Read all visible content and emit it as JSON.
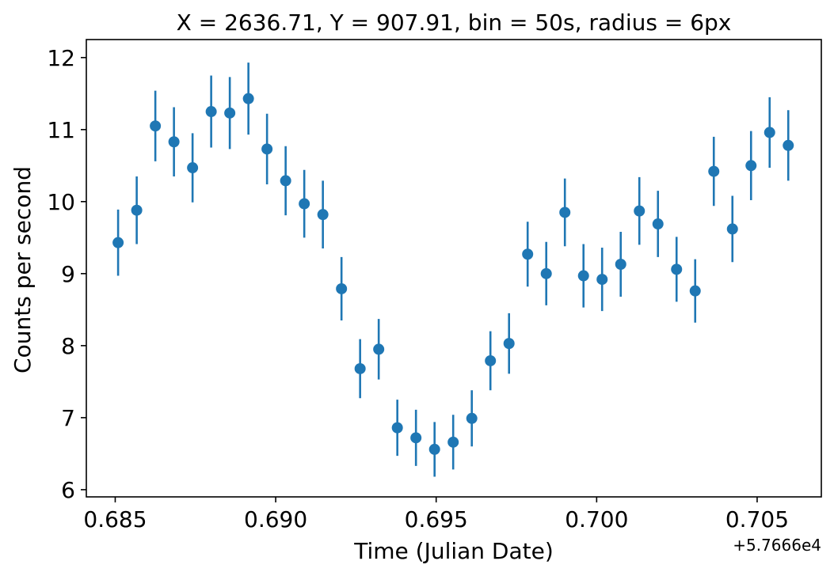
{
  "chart_data": {
    "type": "scatter",
    "title": "X = 2636.71, Y = 907.91, bin = 50s, radius = 6px",
    "xlabel": "Time (Julian Date)",
    "ylabel": "Counts per second",
    "x_offset_label": "+5.7666e4",
    "xlim": [
      0.6841,
      0.707
    ],
    "ylim": [
      5.9,
      12.25
    ],
    "x_ticks": [
      0.685,
      0.69,
      0.695,
      0.7,
      0.705
    ],
    "x_tick_labels": [
      "0.685",
      "0.690",
      "0.695",
      "0.700",
      "0.705"
    ],
    "y_ticks": [
      6,
      7,
      8,
      9,
      10,
      11,
      12
    ],
    "y_tick_labels": [
      "6",
      "7",
      "8",
      "9",
      "10",
      "11",
      "12"
    ],
    "grid": false,
    "color": "#1f77b4",
    "series": [
      {
        "x": [
          0.68509,
          0.68567,
          0.68625,
          0.68683,
          0.68741,
          0.68799,
          0.68857,
          0.68915,
          0.68973,
          0.69031,
          0.69089,
          0.69147,
          0.69205,
          0.69263,
          0.69321,
          0.69379,
          0.69437,
          0.69495,
          0.69553,
          0.69611,
          0.69669,
          0.69727,
          0.69785,
          0.69843,
          0.69901,
          0.69959,
          0.70017,
          0.70075,
          0.70133,
          0.70191,
          0.70249,
          0.70307,
          0.70365,
          0.70423,
          0.70481,
          0.70539,
          0.70597
        ],
        "y": [
          9.43,
          9.88,
          11.05,
          10.83,
          10.47,
          11.25,
          11.23,
          11.43,
          10.73,
          10.29,
          9.97,
          9.82,
          8.79,
          7.68,
          7.95,
          6.86,
          6.72,
          6.56,
          6.66,
          6.99,
          7.79,
          8.03,
          9.27,
          9.0,
          9.85,
          8.97,
          8.92,
          9.13,
          9.87,
          9.69,
          9.06,
          8.76,
          10.42,
          9.62,
          10.5,
          10.96,
          10.78
        ],
        "yerr": [
          0.46,
          0.47,
          0.49,
          0.48,
          0.48,
          0.5,
          0.5,
          0.5,
          0.49,
          0.48,
          0.47,
          0.47,
          0.44,
          0.41,
          0.42,
          0.39,
          0.39,
          0.38,
          0.38,
          0.39,
          0.41,
          0.42,
          0.45,
          0.44,
          0.47,
          0.44,
          0.44,
          0.45,
          0.47,
          0.46,
          0.45,
          0.44,
          0.48,
          0.46,
          0.48,
          0.49,
          0.49
        ]
      }
    ]
  }
}
